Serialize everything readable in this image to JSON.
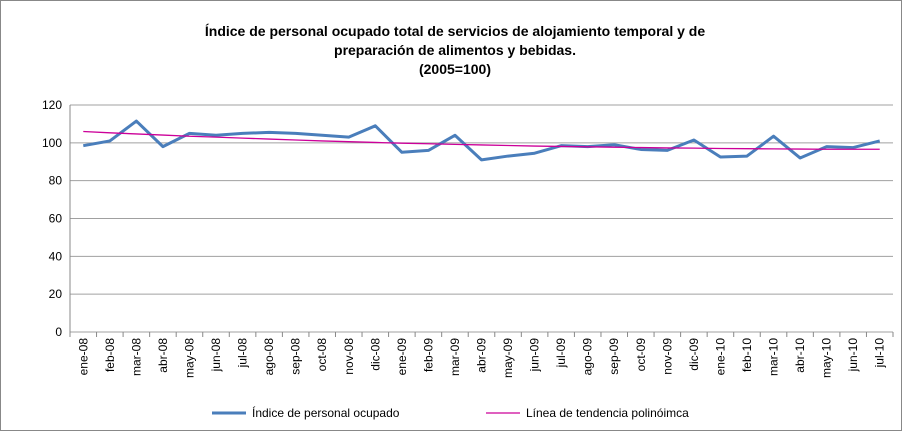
{
  "chart_data": {
    "type": "line",
    "title": [
      "Índice de personal ocupado  total de servicios de alojamiento temporal y de",
      "preparación de alimentos y bebidas.",
      "(2005=100)"
    ],
    "categories": [
      "ene-08",
      "feb-08",
      "mar-08",
      "abr-08",
      "may-08",
      "jun-08",
      "jul-08",
      "ago-08",
      "sep-08",
      "oct-08",
      "nov-08",
      "dic-08",
      "ene-09",
      "feb-09",
      "mar-09",
      "abr-09",
      "may-09",
      "jun-09",
      "jul-09",
      "ago-09",
      "sep-09",
      "oct-09",
      "nov-09",
      "dic-09",
      "ene-10",
      "feb-10",
      "mar-10",
      "abr-10",
      "may-10",
      "jun-10",
      "jul-10"
    ],
    "series": [
      {
        "name": "Índice de personal ocupado",
        "color": "#4a7ebb",
        "width": 3,
        "values": [
          98.5,
          101,
          111.5,
          98,
          105,
          104,
          105,
          105.5,
          105,
          104,
          103,
          109,
          95,
          96,
          104,
          91,
          93,
          94.5,
          98.5,
          98,
          99,
          96.5,
          96,
          101.5,
          92.5,
          93,
          103.5,
          92,
          98,
          97.5,
          101
        ]
      },
      {
        "name": "Línea de tendencia polinóimca",
        "color": "#cc0099",
        "width": 1.3,
        "values": [
          106,
          105.3,
          104.7,
          104.1,
          103.5,
          103,
          102.5,
          102,
          101.5,
          101,
          100.6,
          100.2,
          99.8,
          99.5,
          99.2,
          98.9,
          98.6,
          98.3,
          98.1,
          97.9,
          97.7,
          97.5,
          97.3,
          97.2,
          97,
          96.9,
          96.8,
          96.7,
          96.6,
          96.6,
          96.6
        ]
      }
    ],
    "ylim": [
      0,
      120
    ],
    "yticks": [
      0,
      20,
      40,
      60,
      80,
      100,
      120
    ],
    "grid": true,
    "legend": "bottom"
  }
}
